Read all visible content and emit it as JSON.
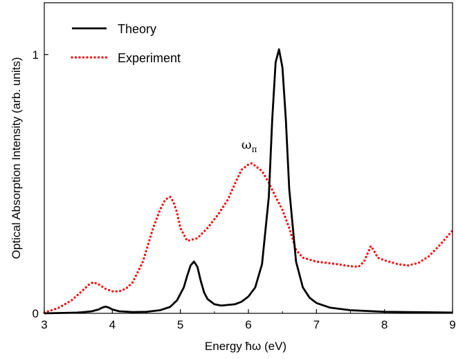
{
  "chart_data": {
    "type": "line",
    "title": "",
    "xlabel": "Energy ħω (eV)",
    "ylabel": "Optical Absorption Intensity (arb. units)",
    "xlim": [
      3,
      9
    ],
    "ylim": [
      0,
      1.2
    ],
    "xticks": [
      3,
      4,
      5,
      6,
      7,
      8,
      9
    ],
    "xtick_labels": [
      "3",
      "4",
      "5",
      "6",
      "7",
      "8",
      "9"
    ],
    "yticks": [
      0,
      1
    ],
    "ytick_labels": [
      "0",
      "1"
    ],
    "grid": false,
    "legend": "top-left",
    "annotations": [
      {
        "main": "ω",
        "sub": "π",
        "x": 6.06,
        "y": 0.62
      }
    ],
    "series": [
      {
        "name": "Theory",
        "color": "#000000",
        "style": "solid",
        "x": [
          3.0,
          3.5,
          3.7,
          3.8,
          3.85,
          3.9,
          3.95,
          4.0,
          4.1,
          4.3,
          4.5,
          4.7,
          4.85,
          4.95,
          5.05,
          5.1,
          5.15,
          5.2,
          5.25,
          5.3,
          5.35,
          5.4,
          5.5,
          5.6,
          5.8,
          5.9,
          6.0,
          6.1,
          6.2,
          6.3,
          6.35,
          6.4,
          6.45,
          6.5,
          6.55,
          6.6,
          6.7,
          6.8,
          6.9,
          7.0,
          7.2,
          7.5,
          8.0,
          9.0
        ],
        "y": [
          0.0,
          0.003,
          0.008,
          0.015,
          0.022,
          0.026,
          0.022,
          0.015,
          0.008,
          0.005,
          0.006,
          0.012,
          0.025,
          0.05,
          0.1,
          0.145,
          0.185,
          0.2,
          0.18,
          0.125,
          0.08,
          0.055,
          0.035,
          0.03,
          0.035,
          0.045,
          0.065,
          0.1,
          0.19,
          0.45,
          0.75,
          0.97,
          1.02,
          0.95,
          0.75,
          0.48,
          0.2,
          0.1,
          0.06,
          0.04,
          0.022,
          0.012,
          0.006,
          0.003
        ]
      },
      {
        "name": "Experiment",
        "color": "#ff0000",
        "style": "dotted",
        "x": [
          3.0,
          3.2,
          3.4,
          3.55,
          3.65,
          3.72,
          3.8,
          3.9,
          4.0,
          4.1,
          4.2,
          4.3,
          4.45,
          4.6,
          4.7,
          4.78,
          4.85,
          4.9,
          4.95,
          5.0,
          5.1,
          5.25,
          5.4,
          5.55,
          5.7,
          5.8,
          5.9,
          6.0,
          6.05,
          6.1,
          6.2,
          6.3,
          6.4,
          6.5,
          6.6,
          6.7,
          6.8,
          7.0,
          7.3,
          7.5,
          7.62,
          7.7,
          7.75,
          7.8,
          7.85,
          7.9,
          8.0,
          8.2,
          8.35,
          8.5,
          8.65,
          8.8,
          9.0
        ],
        "y": [
          0.003,
          0.02,
          0.05,
          0.085,
          0.11,
          0.12,
          0.112,
          0.095,
          0.085,
          0.085,
          0.095,
          0.12,
          0.2,
          0.33,
          0.4,
          0.44,
          0.45,
          0.43,
          0.39,
          0.33,
          0.28,
          0.29,
          0.33,
          0.38,
          0.44,
          0.5,
          0.555,
          0.575,
          0.58,
          0.57,
          0.55,
          0.505,
          0.45,
          0.4,
          0.33,
          0.245,
          0.215,
          0.2,
          0.19,
          0.182,
          0.18,
          0.2,
          0.23,
          0.26,
          0.24,
          0.215,
          0.205,
          0.19,
          0.185,
          0.195,
          0.22,
          0.26,
          0.32
        ]
      }
    ]
  }
}
